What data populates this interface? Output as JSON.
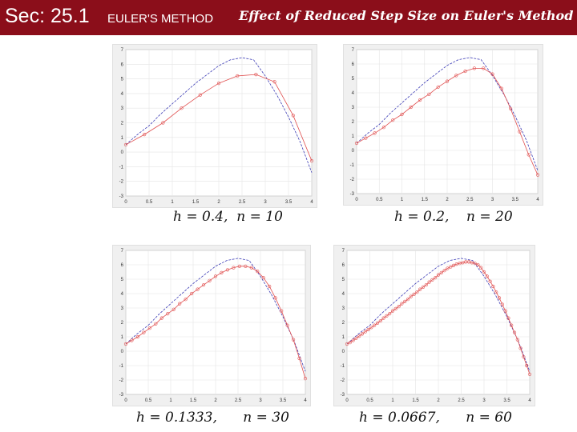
{
  "header": {
    "section": "Sec: 25.1",
    "topic": "EULER'S METHOD",
    "title": "Effect of Reduced Step Size on Euler's Method"
  },
  "colors": {
    "header_bg": "#8b0e1a",
    "exact_curve": "#3b3bb5",
    "euler_curve": "#e05050"
  },
  "panels": [
    {
      "caption": "h = 0.4,  n = 10"
    },
    {
      "caption": "h = 0.2,    n = 20"
    },
    {
      "caption": "h = 0.1333,      n = 30"
    },
    {
      "caption": "h = 0.0667,      n = 60"
    }
  ],
  "chart_data": [
    {
      "type": "line",
      "xlim": [
        0,
        4
      ],
      "ylim": [
        -3,
        7
      ],
      "x_ticks": [
        "0",
        "0.5",
        "1",
        "1.5",
        "2",
        "2.5",
        "3",
        "3.5",
        "4"
      ],
      "y_ticks": [
        "-3",
        "-2",
        "-1",
        "0",
        "1",
        "2",
        "3",
        "4",
        "5",
        "6",
        "7"
      ],
      "grid": true,
      "series": [
        {
          "x": [
            0,
            0.25,
            0.5,
            0.75,
            1,
            1.25,
            1.5,
            1.75,
            2,
            2.25,
            2.5,
            2.75,
            3,
            3.25,
            3.5,
            3.75,
            4
          ],
          "y": [
            0.5,
            1.2,
            1.8,
            2.6,
            3.3,
            4.0,
            4.7,
            5.3,
            5.9,
            6.3,
            6.45,
            6.3,
            5.2,
            3.9,
            2.4,
            0.7,
            -1.4
          ]
        },
        {
          "x": [
            0,
            0.4,
            0.8,
            1.2,
            1.6,
            2.0,
            2.4,
            2.8,
            3.2,
            3.6,
            4.0
          ],
          "y": [
            0.5,
            1.2,
            2.0,
            3.0,
            3.9,
            4.7,
            5.2,
            5.3,
            4.8,
            2.5,
            -0.6
          ]
        }
      ]
    },
    {
      "type": "line",
      "xlim": [
        0,
        4
      ],
      "ylim": [
        -3,
        7
      ],
      "x_ticks": [
        "0",
        "0.5",
        "1",
        "1.5",
        "2",
        "2.5",
        "3",
        "3.5",
        "4"
      ],
      "y_ticks": [
        "-3",
        "-2",
        "-1",
        "0",
        "1",
        "2",
        "3",
        "4",
        "5",
        "6",
        "7"
      ],
      "grid": true,
      "series": [
        {
          "x": [
            0,
            0.25,
            0.5,
            0.75,
            1,
            1.25,
            1.5,
            1.75,
            2,
            2.25,
            2.5,
            2.75,
            3,
            3.25,
            3.5,
            3.75,
            4
          ],
          "y": [
            0.5,
            1.2,
            1.8,
            2.6,
            3.3,
            4.0,
            4.7,
            5.3,
            5.9,
            6.3,
            6.45,
            6.3,
            5.2,
            3.9,
            2.4,
            0.7,
            -1.4
          ]
        },
        {
          "x": [
            0,
            0.2,
            0.4,
            0.6,
            0.8,
            1.0,
            1.2,
            1.4,
            1.6,
            1.8,
            2.0,
            2.2,
            2.4,
            2.6,
            2.8,
            3.0,
            3.2,
            3.4,
            3.6,
            3.8,
            4.0
          ],
          "y": [
            0.5,
            0.85,
            1.2,
            1.6,
            2.1,
            2.5,
            3.0,
            3.5,
            3.9,
            4.4,
            4.8,
            5.2,
            5.5,
            5.7,
            5.7,
            5.3,
            4.3,
            2.9,
            1.3,
            -0.3,
            -1.7
          ]
        }
      ]
    },
    {
      "type": "line",
      "xlim": [
        0,
        4
      ],
      "ylim": [
        -3,
        7
      ],
      "x_ticks": [
        "0",
        "0.5",
        "1",
        "1.5",
        "2",
        "2.5",
        "3",
        "3.5",
        "4"
      ],
      "y_ticks": [
        "-3",
        "-2",
        "-1",
        "0",
        "1",
        "2",
        "3",
        "4",
        "5",
        "6",
        "7"
      ],
      "grid": true,
      "series": [
        {
          "x": [
            0,
            0.25,
            0.5,
            0.75,
            1,
            1.25,
            1.5,
            1.75,
            2,
            2.25,
            2.5,
            2.75,
            3,
            3.25,
            3.5,
            3.75,
            4
          ],
          "y": [
            0.5,
            1.2,
            1.8,
            2.6,
            3.3,
            4.0,
            4.7,
            5.3,
            5.9,
            6.3,
            6.45,
            6.3,
            5.2,
            3.9,
            2.4,
            0.7,
            -1.4
          ]
        },
        {
          "x": [
            0,
            0.133,
            0.267,
            0.4,
            0.533,
            0.667,
            0.8,
            0.933,
            1.067,
            1.2,
            1.333,
            1.467,
            1.6,
            1.733,
            1.867,
            2.0,
            2.133,
            2.267,
            2.4,
            2.533,
            2.667,
            2.8,
            2.933,
            3.067,
            3.2,
            3.333,
            3.467,
            3.6,
            3.733,
            3.867,
            4.0
          ],
          "y": [
            0.5,
            0.75,
            1.0,
            1.3,
            1.6,
            1.9,
            2.3,
            2.6,
            2.9,
            3.3,
            3.6,
            4.0,
            4.3,
            4.6,
            4.9,
            5.2,
            5.45,
            5.65,
            5.8,
            5.9,
            5.9,
            5.8,
            5.55,
            5.1,
            4.5,
            3.7,
            2.8,
            1.8,
            0.8,
            -0.5,
            -1.9
          ]
        }
      ]
    },
    {
      "type": "line",
      "xlim": [
        0,
        4
      ],
      "ylim": [
        -3,
        7
      ],
      "x_ticks": [
        "0",
        "0.5",
        "1",
        "1.5",
        "2",
        "2.5",
        "3",
        "3.5",
        "4"
      ],
      "y_ticks": [
        "-3",
        "-2",
        "-1",
        "0",
        "1",
        "2",
        "3",
        "4",
        "5",
        "6",
        "7"
      ],
      "grid": true,
      "series": [
        {
          "x": [
            0,
            0.25,
            0.5,
            0.75,
            1,
            1.25,
            1.5,
            1.75,
            2,
            2.25,
            2.5,
            2.75,
            3,
            3.25,
            3.5,
            3.75,
            4
          ],
          "y": [
            0.5,
            1.2,
            1.8,
            2.6,
            3.3,
            4.0,
            4.7,
            5.3,
            5.9,
            6.3,
            6.45,
            6.3,
            5.2,
            3.9,
            2.4,
            0.7,
            -1.4
          ]
        },
        {
          "x": [
            0,
            0.0667,
            0.1333,
            0.2,
            0.2667,
            0.3333,
            0.4,
            0.4667,
            0.5333,
            0.6,
            0.6667,
            0.7333,
            0.8,
            0.8667,
            0.9333,
            1.0,
            1.0667,
            1.1333,
            1.2,
            1.2667,
            1.3333,
            1.4,
            1.4667,
            1.5333,
            1.6,
            1.6667,
            1.7333,
            1.8,
            1.8667,
            1.9333,
            2.0,
            2.0667,
            2.1333,
            2.2,
            2.2667,
            2.3333,
            2.4,
            2.4667,
            2.5333,
            2.6,
            2.6667,
            2.7333,
            2.8,
            2.8667,
            2.9333,
            3.0,
            3.0667,
            3.1333,
            3.2,
            3.2667,
            3.3333,
            3.4,
            3.4667,
            3.5333,
            3.6,
            3.6667,
            3.7333,
            3.8,
            3.8667,
            3.9333,
            4.0
          ],
          "y": [
            0.5,
            0.6,
            0.75,
            0.9,
            1.05,
            1.2,
            1.35,
            1.5,
            1.65,
            1.8,
            1.95,
            2.1,
            2.3,
            2.45,
            2.6,
            2.8,
            2.95,
            3.1,
            3.3,
            3.45,
            3.6,
            3.8,
            3.95,
            4.1,
            4.3,
            4.45,
            4.6,
            4.8,
            4.95,
            5.1,
            5.3,
            5.45,
            5.6,
            5.75,
            5.85,
            5.95,
            6.05,
            6.1,
            6.15,
            6.2,
            6.2,
            6.15,
            6.1,
            6.0,
            5.8,
            5.5,
            5.2,
            4.85,
            4.5,
            4.1,
            3.7,
            3.25,
            2.8,
            2.3,
            1.8,
            1.3,
            0.8,
            0.2,
            -0.4,
            -1.0,
            -1.6
          ]
        }
      ]
    }
  ]
}
